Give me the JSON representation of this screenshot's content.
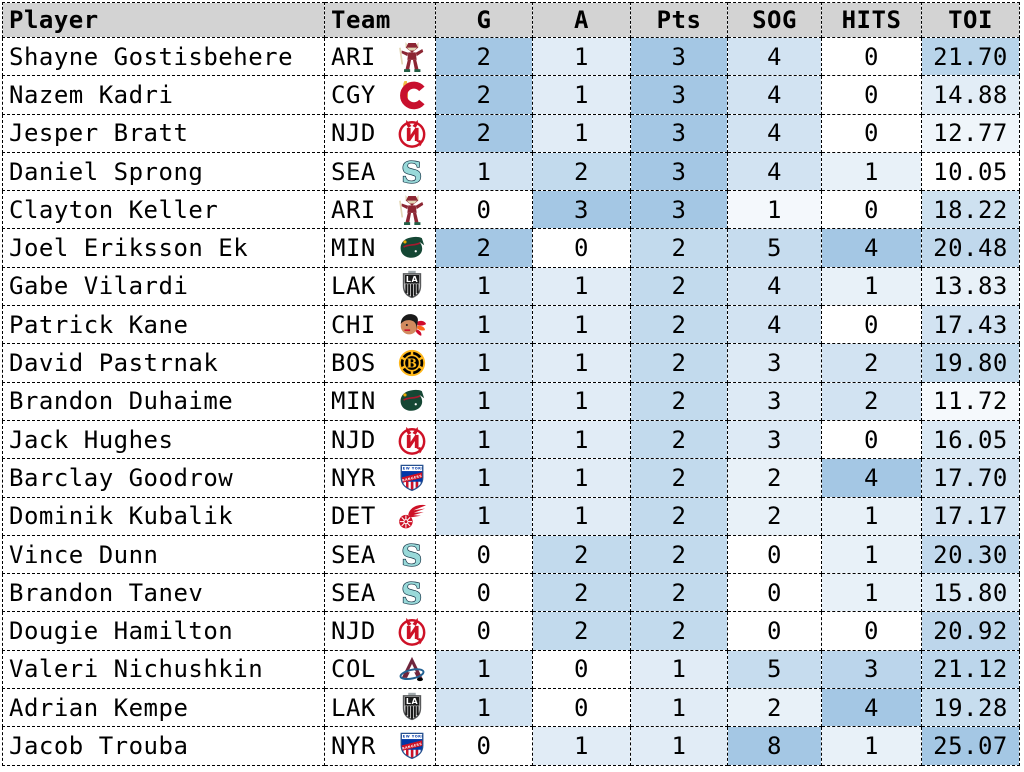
{
  "style": {
    "header_bg": "#d3d3d3",
    "border_color": "#000000",
    "heat_low": "#ffffff",
    "heat_high": "#a4c7e4"
  },
  "chart_data": {
    "type": "table",
    "title": "",
    "columns": [
      {
        "label": "Player",
        "key": "player",
        "kind": "text"
      },
      {
        "label": "Team",
        "key": "team",
        "kind": "team"
      },
      {
        "label": "G",
        "key": "g",
        "kind": "stat",
        "norm": "zero-max"
      },
      {
        "label": "A",
        "key": "a",
        "kind": "stat",
        "norm": "zero-max"
      },
      {
        "label": "Pts",
        "key": "pts",
        "kind": "stat",
        "norm": "zero-max"
      },
      {
        "label": "SOG",
        "key": "sog",
        "kind": "stat",
        "norm": "zero-max"
      },
      {
        "label": "HITS",
        "key": "hits",
        "kind": "stat",
        "norm": "zero-max"
      },
      {
        "label": "TOI",
        "key": "toi",
        "kind": "stat",
        "norm": "min-max",
        "decimals": 2
      }
    ],
    "rows": [
      {
        "player": "Shayne Gostisbehere",
        "team": "ARI",
        "g": 2,
        "a": 1,
        "pts": 3,
        "sog": 4,
        "hits": 0,
        "toi": 21.7
      },
      {
        "player": "Nazem Kadri",
        "team": "CGY",
        "g": 2,
        "a": 1,
        "pts": 3,
        "sog": 4,
        "hits": 0,
        "toi": 14.88
      },
      {
        "player": "Jesper Bratt",
        "team": "NJD",
        "g": 2,
        "a": 1,
        "pts": 3,
        "sog": 4,
        "hits": 0,
        "toi": 12.77
      },
      {
        "player": "Daniel Sprong",
        "team": "SEA",
        "g": 1,
        "a": 2,
        "pts": 3,
        "sog": 4,
        "hits": 1,
        "toi": 10.05
      },
      {
        "player": "Clayton Keller",
        "team": "ARI",
        "g": 0,
        "a": 3,
        "pts": 3,
        "sog": 1,
        "hits": 0,
        "toi": 18.22
      },
      {
        "player": "Joel Eriksson Ek",
        "team": "MIN",
        "g": 2,
        "a": 0,
        "pts": 2,
        "sog": 5,
        "hits": 4,
        "toi": 20.48
      },
      {
        "player": "Gabe Vilardi",
        "team": "LAK",
        "g": 1,
        "a": 1,
        "pts": 2,
        "sog": 4,
        "hits": 1,
        "toi": 13.83
      },
      {
        "player": "Patrick Kane",
        "team": "CHI",
        "g": 1,
        "a": 1,
        "pts": 2,
        "sog": 4,
        "hits": 0,
        "toi": 17.43
      },
      {
        "player": "David Pastrnak",
        "team": "BOS",
        "g": 1,
        "a": 1,
        "pts": 2,
        "sog": 3,
        "hits": 2,
        "toi": 19.8
      },
      {
        "player": "Brandon Duhaime",
        "team": "MIN",
        "g": 1,
        "a": 1,
        "pts": 2,
        "sog": 3,
        "hits": 2,
        "toi": 11.72
      },
      {
        "player": "Jack Hughes",
        "team": "NJD",
        "g": 1,
        "a": 1,
        "pts": 2,
        "sog": 3,
        "hits": 0,
        "toi": 16.05
      },
      {
        "player": "Barclay Goodrow",
        "team": "NYR",
        "g": 1,
        "a": 1,
        "pts": 2,
        "sog": 2,
        "hits": 4,
        "toi": 17.7
      },
      {
        "player": "Dominik Kubalik",
        "team": "DET",
        "g": 1,
        "a": 1,
        "pts": 2,
        "sog": 2,
        "hits": 1,
        "toi": 17.17
      },
      {
        "player": "Vince Dunn",
        "team": "SEA",
        "g": 0,
        "a": 2,
        "pts": 2,
        "sog": 0,
        "hits": 1,
        "toi": 20.3
      },
      {
        "player": "Brandon Tanev",
        "team": "SEA",
        "g": 0,
        "a": 2,
        "pts": 2,
        "sog": 0,
        "hits": 1,
        "toi": 15.8
      },
      {
        "player": "Dougie Hamilton",
        "team": "NJD",
        "g": 0,
        "a": 2,
        "pts": 2,
        "sog": 0,
        "hits": 0,
        "toi": 20.92
      },
      {
        "player": "Valeri Nichushkin",
        "team": "COL",
        "g": 1,
        "a": 0,
        "pts": 1,
        "sog": 5,
        "hits": 3,
        "toi": 21.12
      },
      {
        "player": "Adrian Kempe",
        "team": "LAK",
        "g": 1,
        "a": 0,
        "pts": 1,
        "sog": 2,
        "hits": 4,
        "toi": 19.28
      },
      {
        "player": "Jacob Trouba",
        "team": "NYR",
        "g": 0,
        "a": 1,
        "pts": 1,
        "sog": 8,
        "hits": 1,
        "toi": 25.07
      }
    ]
  },
  "teams": {
    "ARI": {
      "logo_icon": "arizona-coyotes-kachina-icon",
      "colors": {
        "primary": "#8C2633",
        "secondary": "#E2D6B5",
        "accent": "#225E45"
      }
    },
    "CGY": {
      "logo_icon": "calgary-flames-flaming-c-icon",
      "colors": {
        "primary": "#C8102E",
        "secondary": "#F1BE48",
        "accent": "#EC9A3C"
      }
    },
    "NJD": {
      "logo_icon": "new-jersey-devils-nj-icon",
      "colors": {
        "primary": "#CE1126",
        "secondary": "#ffffff",
        "accent": "#000000"
      }
    },
    "SEA": {
      "logo_icon": "seattle-kraken-s-icon",
      "colors": {
        "primary": "#99D9D9",
        "secondary": "#0D2C3F",
        "accent": "#355464"
      }
    },
    "MIN": {
      "logo_icon": "minnesota-wild-animal-icon",
      "colors": {
        "primary": "#154734",
        "secondary": "#A6192E",
        "accent": "#EAAA00"
      }
    },
    "LAK": {
      "logo_icon": "la-kings-shield-icon",
      "colors": {
        "primary": "#1A1A1A",
        "secondary": "#A2AAAD",
        "accent": "#ffffff"
      }
    },
    "CHI": {
      "logo_icon": "chicago-blackhawks-head-icon",
      "colors": {
        "primary": "#CF0A2C",
        "secondary": "#D18A5E",
        "accent": "#FF671B"
      }
    },
    "BOS": {
      "logo_icon": "boston-bruins-spoked-b-icon",
      "colors": {
        "primary": "#000000",
        "secondary": "#FFB81C",
        "accent": "#ffffff"
      }
    },
    "NYR": {
      "logo_icon": "ny-rangers-shield-icon",
      "colors": {
        "primary": "#0038A8",
        "secondary": "#CE1126",
        "accent": "#ffffff"
      }
    },
    "DET": {
      "logo_icon": "detroit-red-wings-wheel-icon",
      "colors": {
        "primary": "#CE1126",
        "secondary": "#ffffff",
        "accent": "#CE1126"
      }
    },
    "COL": {
      "logo_icon": "colorado-avalanche-a-icon",
      "colors": {
        "primary": "#6F263D",
        "secondary": "#236192",
        "accent": "#000000"
      }
    }
  }
}
